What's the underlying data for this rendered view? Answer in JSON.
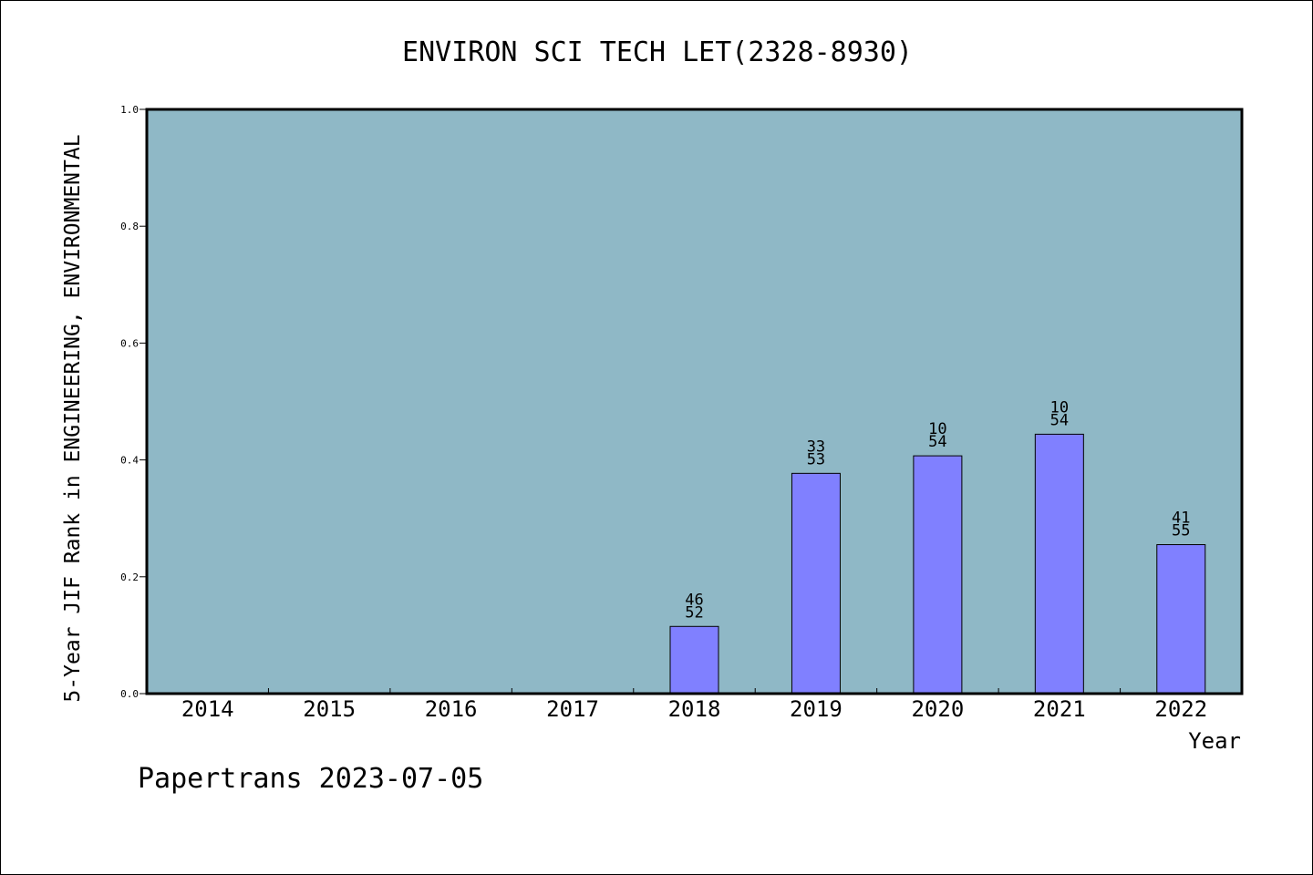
{
  "chart_data": {
    "type": "bar",
    "title": "ENVIRON SCI TECH LET(2328-8930)",
    "xlabel": "Year",
    "ylabel": "5-Year JIF Rank in ENGINEERING, ENVIRONMENTAL",
    "categories": [
      "2014",
      "2015",
      "2016",
      "2017",
      "2018",
      "2019",
      "2020",
      "2021",
      "2022"
    ],
    "values": [
      null,
      null,
      null,
      null,
      0.115,
      0.377,
      0.407,
      0.444,
      0.255
    ],
    "bar_labels": [
      null,
      null,
      null,
      null,
      {
        "rank": "46",
        "total": "52"
      },
      {
        "rank": "33",
        "total": "53"
      },
      {
        "rank": "10",
        "total": "54"
      },
      {
        "rank": "10",
        "total": "54"
      },
      {
        "rank": "41",
        "total": "55"
      }
    ],
    "ylim": [
      0,
      1.0
    ],
    "yticks": [
      "0.0",
      "0.2",
      "0.4",
      "0.6",
      "0.8",
      "1.0"
    ],
    "grid": false,
    "legend": "none",
    "colors": {
      "plot_background": "#8fb8c6",
      "bar_fill": "#8080ff",
      "bar_stroke": "#000000",
      "axis": "#000000"
    }
  },
  "footer": {
    "credit": "Papertrans 2023-07-05"
  }
}
